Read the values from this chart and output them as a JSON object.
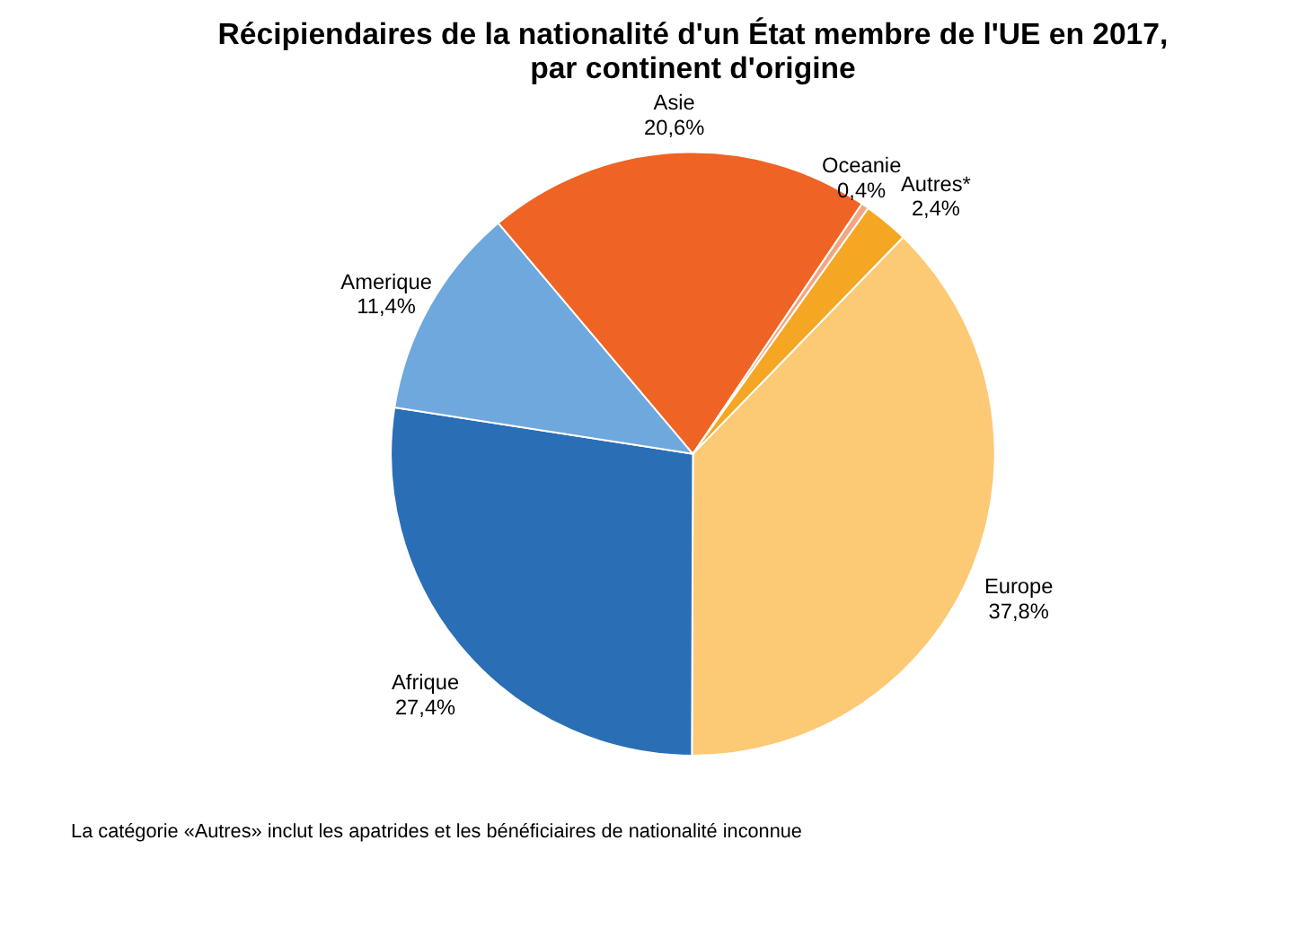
{
  "chart_data": {
    "type": "pie",
    "title": "Récipiendaires de la nationalité d'un État membre de l'UE en 2017, par continent d'origine",
    "categories": [
      "Europe",
      "Afrique",
      "Amerique",
      "Asie",
      "Oceanie",
      "Autres*"
    ],
    "values": [
      37.8,
      27.4,
      11.4,
      20.6,
      0.4,
      2.4
    ],
    "value_labels": [
      "37,8%",
      "27,4%",
      "11,4%",
      "20,6%",
      "0,4%",
      "2,4%"
    ],
    "colors": [
      "#fcc975",
      "#2a6eb5",
      "#6fa8dc",
      "#ef6324",
      "#f4a582",
      "#f5a623"
    ],
    "legend": false,
    "annotations": [
      "La catégorie «Autres» inclut les apatrides et les bénéficiaires de nationalité inconnue"
    ]
  }
}
